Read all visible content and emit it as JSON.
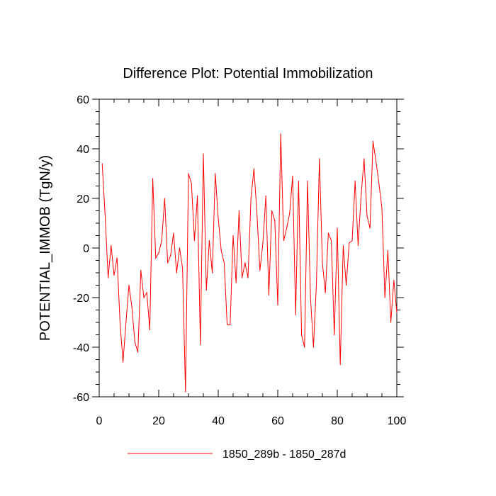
{
  "chart_data": {
    "type": "line",
    "title": "Difference Plot: Potential Immobilization",
    "xlabel": "",
    "ylabel": "POTENTIAL_IMMOB  (TgN/y)",
    "xlim": [
      0,
      100
    ],
    "ylim": [
      -60,
      60
    ],
    "x_major_ticks": [
      0,
      20,
      40,
      60,
      80,
      100
    ],
    "x_tick_labels": [
      "0",
      "20",
      "40",
      "60",
      "80",
      "100"
    ],
    "y_major_ticks": [
      -60,
      -40,
      -20,
      0,
      20,
      40,
      60
    ],
    "y_tick_labels": [
      "-60",
      "-40",
      "-20",
      "0",
      "20",
      "40",
      "60"
    ],
    "grid": false,
    "legend_position": "bottom-center",
    "series": [
      {
        "name": "1850_289b - 1850_287d",
        "color": "#ff0000",
        "x": [
          1,
          2,
          3,
          4,
          5,
          6,
          7,
          8,
          9,
          10,
          11,
          12,
          13,
          14,
          15,
          16,
          17,
          18,
          19,
          20,
          21,
          22,
          23,
          24,
          25,
          26,
          27,
          28,
          29,
          30,
          31,
          32,
          33,
          34,
          35,
          36,
          37,
          38,
          39,
          40,
          41,
          42,
          43,
          44,
          45,
          46,
          47,
          48,
          49,
          50,
          51,
          52,
          53,
          54,
          55,
          56,
          57,
          58,
          59,
          60,
          61,
          62,
          63,
          64,
          65,
          66,
          67,
          68,
          69,
          70,
          71,
          72,
          73,
          74,
          75,
          76,
          77,
          78,
          79,
          80,
          81,
          82,
          83,
          84,
          85,
          86,
          87,
          88,
          89,
          90,
          91,
          92,
          93,
          94,
          95,
          96,
          97,
          98,
          99,
          100
        ],
        "values": [
          34,
          13,
          -12,
          1,
          -11,
          -4,
          -30,
          -46,
          -30,
          -15,
          -24,
          -38,
          -42,
          -9,
          -20,
          -18,
          -33,
          28,
          -4,
          -2,
          3,
          20,
          -6,
          -3,
          6,
          -10,
          0,
          -8,
          -58,
          30,
          26,
          3,
          21,
          -39,
          38,
          -17,
          3,
          -10,
          30,
          12,
          -1,
          -6,
          -31,
          -31,
          5,
          -14,
          15,
          -12,
          -6,
          -12,
          20,
          32,
          14,
          -9,
          2,
          21,
          -19,
          15,
          11,
          -23,
          46,
          3,
          8,
          14,
          29,
          -27,
          27,
          -35,
          -40,
          27,
          -20,
          -40,
          -14,
          36,
          -6,
          -18,
          6,
          3,
          -35,
          8,
          -47,
          1,
          -15,
          2,
          3,
          27,
          1,
          21,
          36,
          13,
          8,
          43,
          35,
          26,
          16,
          -20,
          -1,
          -30,
          -13,
          -26
        ]
      }
    ]
  }
}
